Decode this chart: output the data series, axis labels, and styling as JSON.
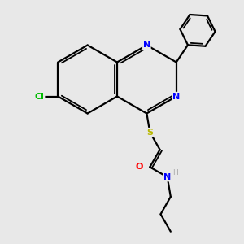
{
  "background_color": "#e8e8e8",
  "bond_color": "#000000",
  "atom_colors": {
    "N": "#0000ff",
    "O": "#ff0000",
    "S": "#b8b800",
    "Cl": "#00bb00",
    "H": "#aaaaaa",
    "C": "#000000"
  },
  "figsize": [
    3.0,
    3.0
  ],
  "dpi": 100,
  "xlim": [
    0,
    10
  ],
  "ylim": [
    0,
    10
  ]
}
